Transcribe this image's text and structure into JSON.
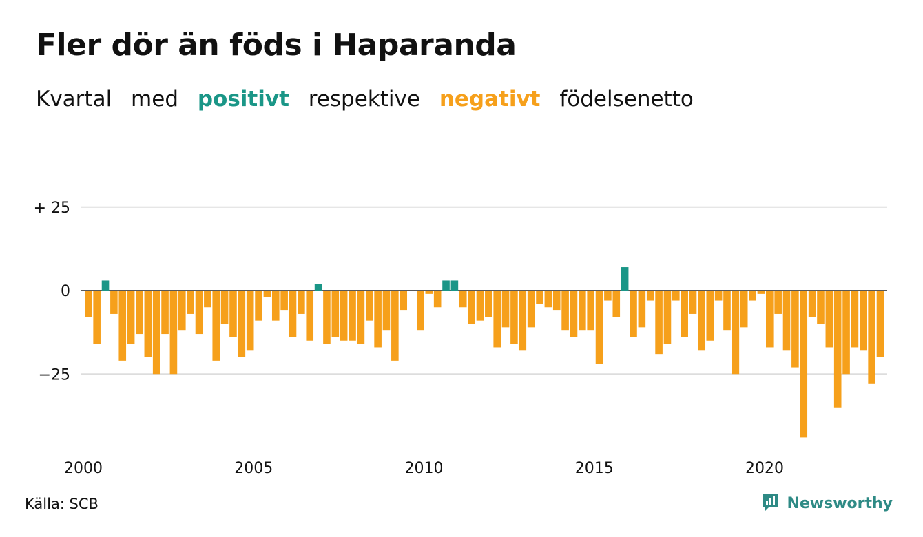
{
  "title": "Fler dör än föds i Haparanda",
  "subtitle": {
    "part1": "Kvartal",
    "part2": "med",
    "positive_word": "positivt",
    "part3": "respektive",
    "negative_word": "negativt",
    "part4": "födelsenetto"
  },
  "colors": {
    "positive": "#1a9687",
    "negative": "#f6a01b",
    "grid": "#dddddd",
    "brand": "#2e8a85"
  },
  "source": "Källa: SCB",
  "brand": {
    "name": "Newsworthy",
    "icon": "newsworthy-logo-icon"
  },
  "chart_data": {
    "type": "bar",
    "x_start": 2000.0,
    "x_step": 0.25,
    "ylim": [
      -47,
      25
    ],
    "y_ticks": [
      {
        "value": 25,
        "label": "+ 25"
      },
      {
        "value": 0,
        "label": "0"
      },
      {
        "value": -25,
        "label": "−25"
      }
    ],
    "x_ticks": [
      {
        "value": 2000,
        "label": "2000"
      },
      {
        "value": 2005,
        "label": "2005"
      },
      {
        "value": 2010,
        "label": "2010"
      },
      {
        "value": 2015,
        "label": "2015"
      },
      {
        "value": 2020,
        "label": "2020"
      }
    ],
    "values": [
      -8,
      -16,
      3,
      -7,
      -21,
      -16,
      -13,
      -20,
      -25,
      -13,
      -25,
      -12,
      -7,
      -13,
      -5,
      -21,
      -10,
      -14,
      -20,
      -18,
      -9,
      -2,
      -9,
      -6,
      -14,
      -7,
      -15,
      2,
      -16,
      -14,
      -15,
      -15,
      -16,
      -9,
      -17,
      -12,
      -21,
      -6,
      0,
      -12,
      -1,
      -5,
      3,
      3,
      -5,
      -10,
      -9,
      -8,
      -17,
      -11,
      -16,
      -18,
      -11,
      -4,
      -5,
      -6,
      -12,
      -14,
      -12,
      -12,
      -22,
      -3,
      -8,
      7,
      -14,
      -11,
      -3,
      -19,
      -16,
      -3,
      -14,
      -7,
      -18,
      -15,
      -3,
      -12,
      -25,
      -11,
      -3,
      -1,
      -17,
      -7,
      -18,
      -23,
      -44,
      -8,
      -10,
      -17,
      -35,
      -25,
      -17,
      -18,
      -28,
      -20
    ]
  }
}
